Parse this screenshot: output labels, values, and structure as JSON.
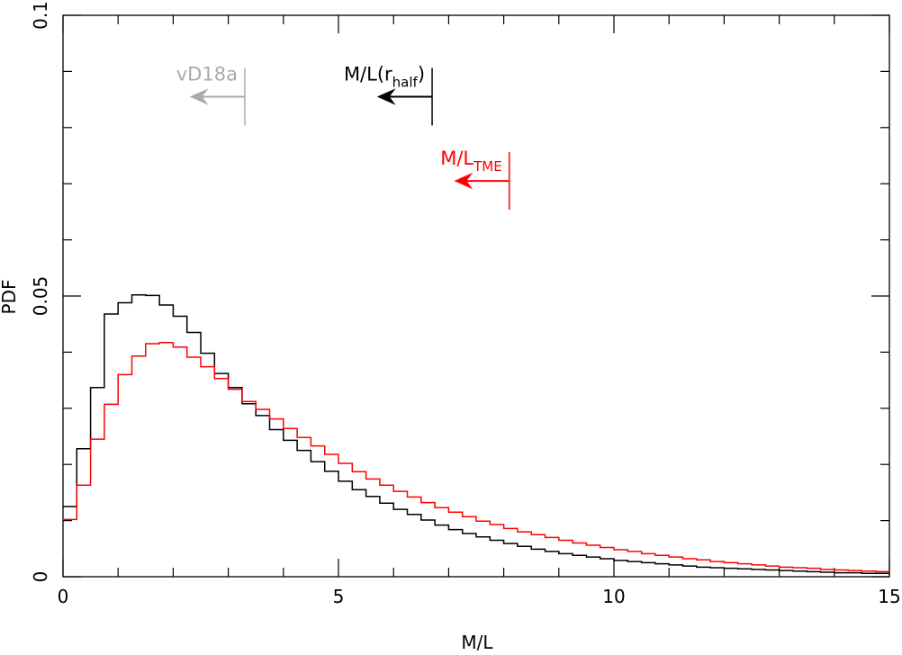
{
  "chart_data": {
    "type": "line",
    "style": "step-histogram",
    "title": "",
    "xlabel": "M/L",
    "ylabel": "PDF",
    "xlim": [
      0,
      15
    ],
    "ylim": [
      0,
      0.1
    ],
    "x_ticks": [
      0,
      5,
      10,
      15
    ],
    "x_minor_step": 1,
    "y_ticks": [
      0,
      0.05,
      0.1
    ],
    "y_tick_labels": [
      "0",
      "0.05",
      "0.1"
    ],
    "y_minor_step": 0.01,
    "bin_width": 0.25,
    "bin_starts": [
      0.0,
      0.25,
      0.5,
      0.75,
      1.0,
      1.25,
      1.5,
      1.75,
      2.0,
      2.25,
      2.5,
      2.75,
      3.0,
      3.25,
      3.5,
      3.75,
      4.0,
      4.25,
      4.5,
      4.75,
      5.0,
      5.25,
      5.5,
      5.75,
      6.0,
      6.25,
      6.5,
      6.75,
      7.0,
      7.25,
      7.5,
      7.75,
      8.0,
      8.25,
      8.5,
      8.75,
      9.0,
      9.25,
      9.5,
      9.75,
      10.0,
      10.25,
      10.5,
      10.75,
      11.0,
      11.25,
      11.5,
      11.75,
      12.0,
      12.25,
      12.5,
      12.75,
      13.0,
      13.25,
      13.5,
      13.75,
      14.0,
      14.25,
      14.5,
      14.75
    ],
    "series": [
      {
        "name": "M/L(r_half)",
        "color": "#000000",
        "values": [
          0.0125,
          0.0228,
          0.0337,
          0.0468,
          0.0488,
          0.0502,
          0.0501,
          0.0484,
          0.0464,
          0.0435,
          0.0398,
          0.0362,
          0.0337,
          0.0308,
          0.0287,
          0.0262,
          0.0243,
          0.0225,
          0.0205,
          0.0188,
          0.017,
          0.0155,
          0.0143,
          0.0131,
          0.012,
          0.0111,
          0.0101,
          0.0092,
          0.0084,
          0.0077,
          0.0071,
          0.0065,
          0.0059,
          0.0054,
          0.0049,
          0.0045,
          0.0041,
          0.0038,
          0.0035,
          0.0032,
          0.0029,
          0.0027,
          0.0025,
          0.0023,
          0.0021,
          0.0019,
          0.0017,
          0.0016,
          0.0015,
          0.0014,
          0.0013,
          0.0012,
          0.0011,
          0.001,
          0.0009,
          0.0008,
          0.0007,
          0.0007,
          0.0006,
          0.0006
        ]
      },
      {
        "name": "M/L_TME",
        "color": "#ff0000",
        "values": [
          0.0102,
          0.0163,
          0.0245,
          0.0307,
          0.036,
          0.0393,
          0.0415,
          0.0417,
          0.0409,
          0.0391,
          0.0374,
          0.0353,
          0.0334,
          0.0312,
          0.0298,
          0.0281,
          0.0264,
          0.0248,
          0.0233,
          0.0218,
          0.0202,
          0.0187,
          0.0174,
          0.0163,
          0.0152,
          0.0142,
          0.0132,
          0.0123,
          0.0115,
          0.0107,
          0.0099,
          0.0093,
          0.0086,
          0.008,
          0.0075,
          0.007,
          0.0065,
          0.006,
          0.0056,
          0.0052,
          0.0048,
          0.0045,
          0.0041,
          0.0038,
          0.0035,
          0.0032,
          0.003,
          0.0027,
          0.0025,
          0.0023,
          0.0021,
          0.0019,
          0.0017,
          0.0016,
          0.0015,
          0.0013,
          0.0012,
          0.0011,
          0.001,
          0.0009
        ]
      }
    ],
    "annotations": [
      {
        "id": "vd18a",
        "text": "vD18a",
        "sub": "",
        "suffix": "",
        "limit_x": 3.3,
        "arrow_y": 0.0855,
        "color": "#aaaaaa"
      },
      {
        "id": "rhalf",
        "text": "M/L(r",
        "sub": "half",
        "suffix": ")",
        "limit_x": 6.7,
        "arrow_y": 0.0855,
        "color": "#000000"
      },
      {
        "id": "tme",
        "text": "M/L",
        "sub": "TME",
        "suffix": "",
        "limit_x": 8.1,
        "arrow_y": 0.0705,
        "color": "#ff0000"
      }
    ]
  }
}
